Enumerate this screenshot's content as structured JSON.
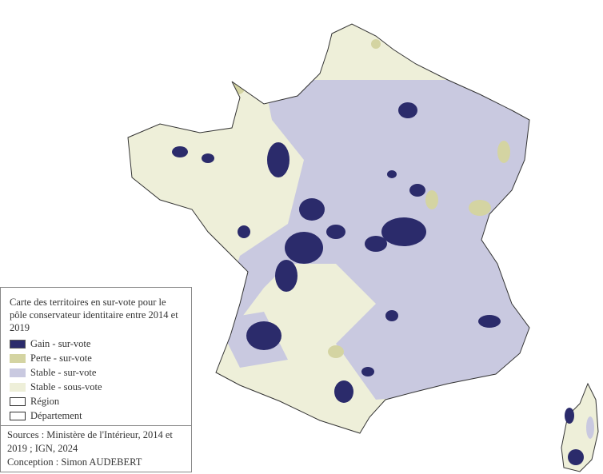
{
  "legend": {
    "title": "Carte des territoires en sur-vote pour le pôle conservateur identitaire entre 2014 et 2019",
    "items": [
      {
        "label": "Gain - sur-vote",
        "color": "#2b2b6b"
      },
      {
        "label": "Perte - sur-vote",
        "color": "#d4d4a2"
      },
      {
        "label": "Stable - sur-vote",
        "color": "#c9c9e0"
      },
      {
        "label": "Stable - sous-vote",
        "color": "#eeefd9"
      },
      {
        "label": "Région",
        "color": "#ffffff"
      },
      {
        "label": "Département",
        "color": "#ffffff"
      }
    ],
    "sources_line1": "Sources : Ministère de l'Intérieur, 2014 et",
    "sources_line2": "2019 ; IGN, 2024",
    "conception": "Conception : Simon AUDEBERT"
  }
}
